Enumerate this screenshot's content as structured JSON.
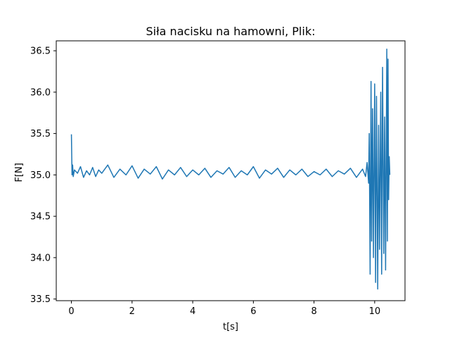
{
  "chart_data": {
    "type": "line",
    "title": "Siła nacisku na hamowni, Plik:",
    "xlabel": "t[s]",
    "ylabel": "F[N]",
    "xlim": [
      -0.5,
      11.0
    ],
    "ylim": [
      33.48,
      36.62
    ],
    "x_ticks": [
      0,
      2,
      4,
      6,
      8,
      10
    ],
    "x_tick_labels": [
      "0",
      "2",
      "4",
      "6",
      "8",
      "10"
    ],
    "y_ticks": [
      33.5,
      34.0,
      34.5,
      35.0,
      35.5,
      36.0,
      36.5
    ],
    "y_tick_labels": [
      "33.5",
      "34.0",
      "34.5",
      "35.0",
      "35.5",
      "36.0",
      "36.5"
    ],
    "grid": false,
    "series": [
      {
        "color": "#1f77b4",
        "x": [
          0.0,
          0.02,
          0.04,
          0.06,
          0.1,
          0.2,
          0.3,
          0.4,
          0.5,
          0.6,
          0.7,
          0.8,
          0.9,
          1.0,
          1.2,
          1.4,
          1.6,
          1.8,
          2.0,
          2.2,
          2.4,
          2.6,
          2.8,
          3.0,
          3.2,
          3.4,
          3.6,
          3.8,
          4.0,
          4.2,
          4.4,
          4.6,
          4.8,
          5.0,
          5.2,
          5.4,
          5.6,
          5.8,
          6.0,
          6.2,
          6.4,
          6.6,
          6.8,
          7.0,
          7.2,
          7.4,
          7.6,
          7.8,
          8.0,
          8.2,
          8.4,
          8.6,
          8.8,
          9.0,
          9.2,
          9.4,
          9.6,
          9.7,
          9.75,
          9.8,
          9.82,
          9.85,
          9.88,
          9.9,
          9.93,
          9.96,
          10.0,
          10.03,
          10.06,
          10.1,
          10.13,
          10.16,
          10.2,
          10.23,
          10.26,
          10.3,
          10.33,
          10.36,
          10.4,
          10.42,
          10.44,
          10.46,
          10.48,
          10.5
        ],
        "y": [
          35.49,
          35.0,
          35.12,
          34.98,
          35.06,
          35.02,
          35.1,
          34.97,
          35.05,
          35.0,
          35.09,
          34.98,
          35.06,
          35.02,
          35.12,
          34.97,
          35.07,
          35.0,
          35.11,
          34.96,
          35.07,
          35.01,
          35.1,
          34.95,
          35.06,
          35.0,
          35.09,
          34.98,
          35.06,
          35.0,
          35.08,
          34.97,
          35.05,
          35.01,
          35.09,
          34.97,
          35.05,
          35.0,
          35.1,
          34.96,
          35.06,
          35.01,
          35.08,
          34.97,
          35.06,
          35.0,
          35.07,
          34.98,
          35.04,
          35.0,
          35.07,
          34.98,
          35.05,
          35.01,
          35.08,
          34.97,
          35.07,
          34.98,
          35.15,
          34.9,
          35.5,
          33.8,
          36.13,
          34.2,
          35.8,
          34.0,
          36.1,
          33.7,
          35.95,
          33.62,
          35.6,
          34.1,
          36.0,
          33.8,
          36.3,
          34.05,
          35.7,
          33.85,
          36.52,
          34.2,
          36.4,
          34.7,
          35.22,
          35.0
        ]
      }
    ]
  }
}
